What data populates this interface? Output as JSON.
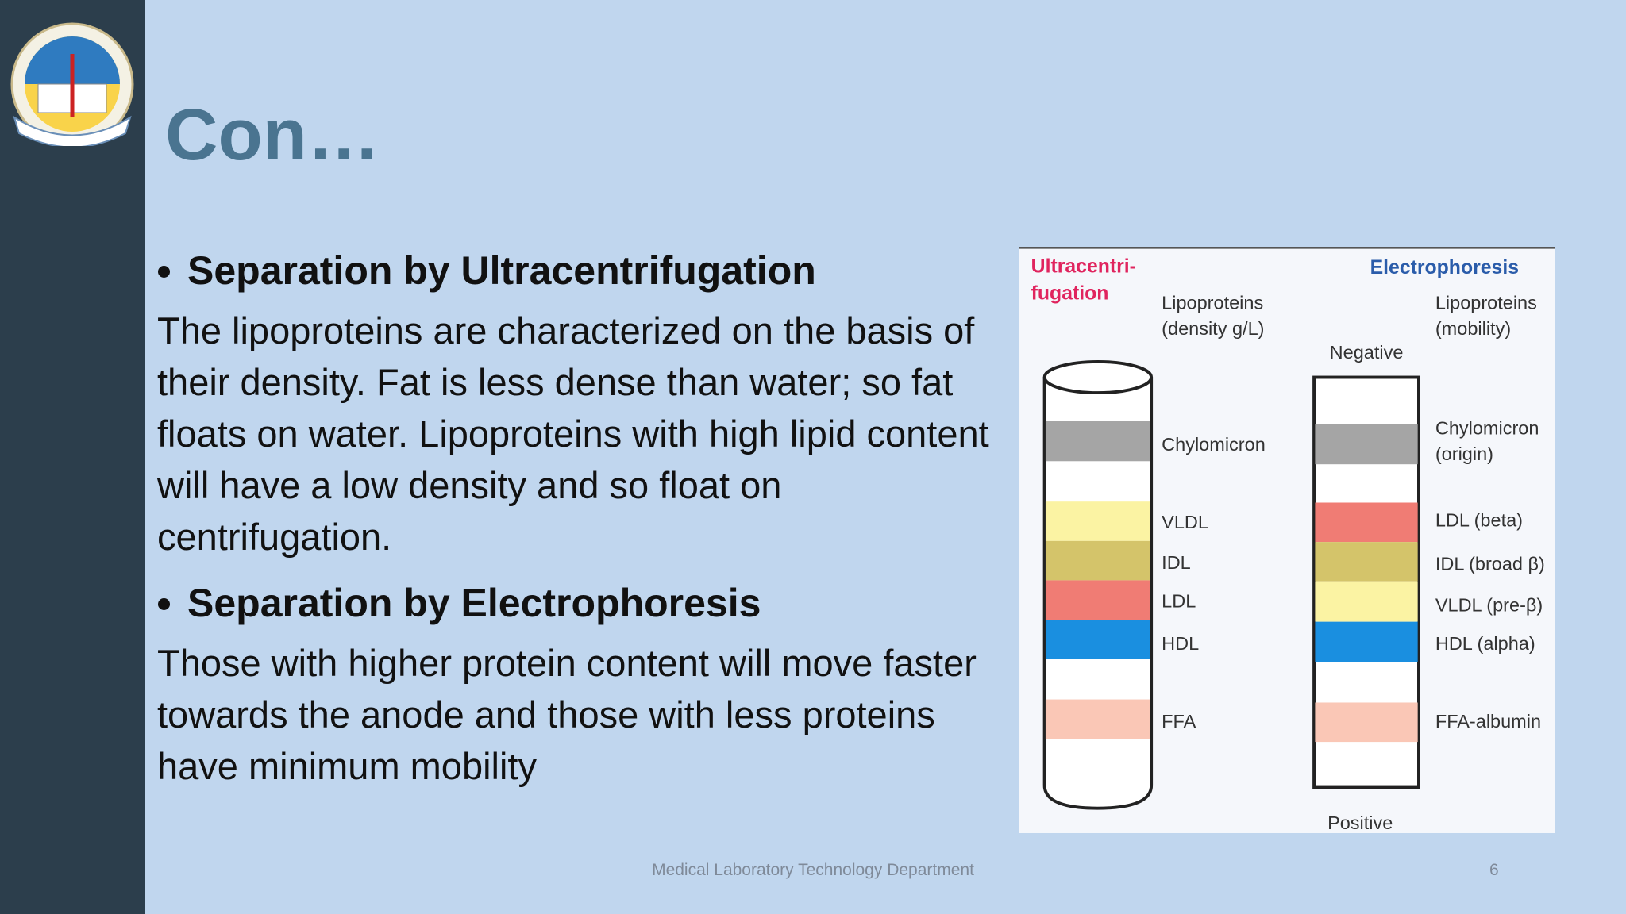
{
  "header": {
    "title": "Con…"
  },
  "body": [
    {
      "bullet": "Separation by Ultracentrifugation",
      "text": "The lipoproteins are characterized on the basis of their density. Fat is less dense than water; so fat floats on water. Lipoproteins with high lipid content will have a low density and so float on centrifugation."
    },
    {
      "bullet": "Separation by Electrophoresis",
      "text": "Those with higher protein content will move faster towards the anode and those with less proteins have minimum mobility"
    }
  ],
  "figure": {
    "ultracentrifugation": {
      "title": [
        "Ultracentri-",
        "fugation"
      ],
      "heading": [
        "Lipoproteins",
        "(density g/L)"
      ],
      "bands": [
        "Chylomicron",
        "VLDL",
        "IDL",
        "LDL",
        "HDL",
        "FFA"
      ]
    },
    "electrophoresis": {
      "title": "Electrophoresis",
      "heading": [
        "Lipoproteins",
        "(mobility)"
      ],
      "top": "Negative",
      "bottom": "Positive",
      "bands": [
        [
          "Chylomicron",
          "(origin)"
        ],
        "LDL (beta)",
        "IDL (broad β)",
        "VLDL (pre-β)",
        "HDL (alpha)",
        "FFA-albumin"
      ]
    }
  },
  "footer": {
    "text": "Medical Laboratory Technology Department",
    "page": 6
  }
}
